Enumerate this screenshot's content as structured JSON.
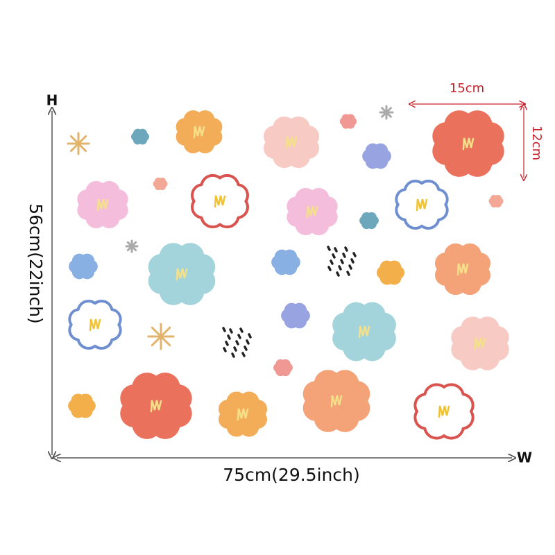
{
  "labels": {
    "height_axis": "H",
    "width_axis": "W",
    "height": "56cm(22inch)",
    "width": "75cm(29.5inch)",
    "sticker_width": "15cm",
    "sticker_height": "12cm"
  }
}
